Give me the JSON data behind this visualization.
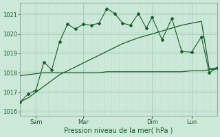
{
  "xlabel": "Pression niveau de la mer( hPa )",
  "bg_color": "#cce8d8",
  "grid_major_color": "#aacfbb",
  "grid_minor_color": "#bbddc9",
  "line_color": "#1a5c2a",
  "ylim": [
    1015.8,
    1021.6
  ],
  "yticks": [
    1016,
    1017,
    1018,
    1019,
    1020,
    1021
  ],
  "xtick_labels": [
    "Sam",
    "Mar",
    "Dim",
    "Lun"
  ],
  "xtick_positions": [
    0.08,
    0.32,
    0.67,
    0.87
  ],
  "line1_x": [
    0.0,
    0.04,
    0.08,
    0.12,
    0.16,
    0.2,
    0.24,
    0.28,
    0.32,
    0.36,
    0.4,
    0.44,
    0.48,
    0.52,
    0.56,
    0.6,
    0.67,
    0.72,
    0.77,
    0.82,
    0.87,
    0.92,
    0.96,
    1.0
  ],
  "line1_y": [
    1017.85,
    1017.9,
    1017.95,
    1018.0,
    1018.0,
    1018.0,
    1018.0,
    1018.0,
    1018.0,
    1018.0,
    1018.0,
    1018.05,
    1018.05,
    1018.05,
    1018.05,
    1018.05,
    1018.05,
    1018.05,
    1018.05,
    1018.05,
    1018.1,
    1018.1,
    1018.15,
    1018.2
  ],
  "line2_x": [
    0.0,
    0.04,
    0.08,
    0.12,
    0.16,
    0.2,
    0.24,
    0.28,
    0.32,
    0.36,
    0.4,
    0.44,
    0.48,
    0.52,
    0.56,
    0.6,
    0.67,
    0.72,
    0.77,
    0.82,
    0.87,
    0.92,
    0.96,
    1.0
  ],
  "line2_y": [
    1016.5,
    1016.7,
    1017.0,
    1017.3,
    1017.6,
    1017.9,
    1018.1,
    1018.3,
    1018.5,
    1018.7,
    1018.9,
    1019.1,
    1019.3,
    1019.5,
    1019.65,
    1019.8,
    1020.0,
    1020.15,
    1020.3,
    1020.45,
    1020.55,
    1020.65,
    1018.2,
    1018.25
  ],
  "line3_x": [
    0.0,
    0.04,
    0.08,
    0.12,
    0.16,
    0.2,
    0.24,
    0.28,
    0.32,
    0.36,
    0.4,
    0.44,
    0.48,
    0.52,
    0.56,
    0.6,
    0.64,
    0.67,
    0.72,
    0.77,
    0.82,
    0.87,
    0.92,
    0.96,
    1.0
  ],
  "line3_y": [
    1016.5,
    1016.9,
    1017.1,
    1018.55,
    1018.15,
    1019.6,
    1020.5,
    1020.25,
    1020.5,
    1020.45,
    1020.55,
    1021.3,
    1021.05,
    1020.55,
    1020.45,
    1021.05,
    1020.3,
    1020.85,
    1019.7,
    1020.8,
    1019.1,
    1019.05,
    1019.85,
    1018.0,
    1018.25
  ],
  "vline_positions": [
    0.08,
    0.32,
    0.67,
    0.87
  ],
  "xlabel_fontsize": 7,
  "tick_fontsize": 6
}
